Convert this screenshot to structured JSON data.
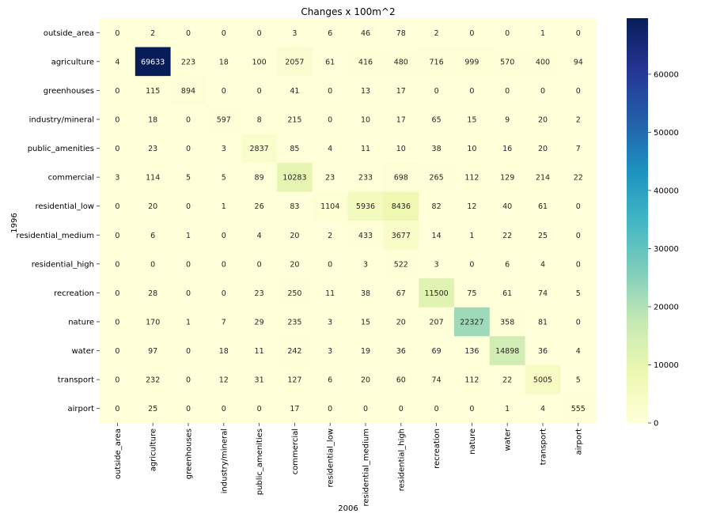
{
  "chart_data": {
    "type": "heatmap",
    "title": "Changes x 100m^2",
    "xlabel": "2006",
    "ylabel": "1996",
    "x_categories": [
      "outside_area",
      "agriculture",
      "greenhouses",
      "industry/mineral",
      "public_amenities",
      "commercial",
      "residential_low",
      "residential_medium",
      "residential_high",
      "recreation",
      "nature",
      "water",
      "transport",
      "airport"
    ],
    "y_categories": [
      "outside_area",
      "agriculture",
      "greenhouses",
      "industry/mineral",
      "public_amenities",
      "commercial",
      "residential_low",
      "residential_medium",
      "residential_high",
      "recreation",
      "nature",
      "water",
      "transport",
      "airport"
    ],
    "values": [
      [
        0,
        2,
        0,
        0,
        0,
        3,
        6,
        46,
        78,
        2,
        0,
        0,
        1,
        0
      ],
      [
        4,
        69633,
        223,
        18,
        100,
        2057,
        61,
        416,
        480,
        716,
        999,
        570,
        400,
        94
      ],
      [
        0,
        115,
        894,
        0,
        0,
        41,
        0,
        13,
        17,
        0,
        0,
        0,
        0,
        0
      ],
      [
        0,
        18,
        0,
        597,
        8,
        215,
        0,
        10,
        17,
        65,
        15,
        9,
        20,
        2
      ],
      [
        0,
        23,
        0,
        3,
        2837,
        85,
        4,
        11,
        10,
        38,
        10,
        16,
        20,
        7
      ],
      [
        3,
        114,
        5,
        5,
        89,
        10283,
        23,
        233,
        698,
        265,
        112,
        129,
        214,
        22
      ],
      [
        0,
        20,
        0,
        1,
        26,
        83,
        1104,
        5936,
        8436,
        82,
        12,
        40,
        61,
        0
      ],
      [
        0,
        6,
        1,
        0,
        4,
        20,
        2,
        433,
        3677,
        14,
        1,
        22,
        25,
        0
      ],
      [
        0,
        0,
        0,
        0,
        0,
        20,
        0,
        3,
        522,
        3,
        0,
        6,
        4,
        0
      ],
      [
        0,
        28,
        0,
        0,
        23,
        250,
        11,
        38,
        67,
        11500,
        75,
        61,
        74,
        5
      ],
      [
        0,
        170,
        1,
        7,
        29,
        235,
        3,
        15,
        20,
        207,
        22327,
        358,
        81,
        0
      ],
      [
        0,
        97,
        0,
        18,
        11,
        242,
        3,
        19,
        36,
        69,
        136,
        14898,
        36,
        4
      ],
      [
        0,
        232,
        0,
        12,
        31,
        127,
        6,
        20,
        60,
        74,
        112,
        22,
        5005,
        5
      ],
      [
        0,
        25,
        0,
        0,
        0,
        17,
        0,
        0,
        0,
        0,
        0,
        1,
        4,
        555
      ]
    ],
    "colormap": "YlGnBu",
    "vmin": 0,
    "vmax": 69633,
    "colorbar_ticks": [
      0,
      10000,
      20000,
      30000,
      40000,
      50000,
      60000
    ],
    "colorbar_tick_labels": [
      "0",
      "10000",
      "20000",
      "30000",
      "40000",
      "50000",
      "60000"
    ],
    "annotations": true,
    "legend_placement": "right colorbar"
  }
}
